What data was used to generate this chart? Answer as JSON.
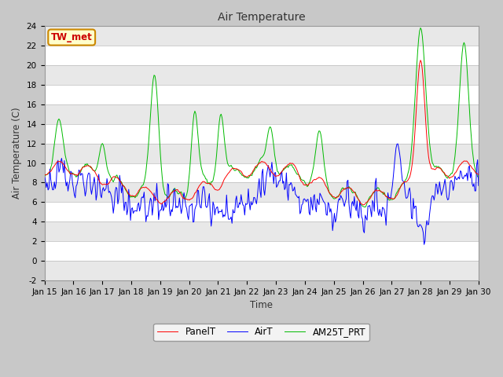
{
  "title": "Air Temperature",
  "ylabel": "Air Temperature (C)",
  "xlabel": "Time",
  "ylim": [
    -2,
    24
  ],
  "yticks": [
    -2,
    0,
    2,
    4,
    6,
    8,
    10,
    12,
    14,
    16,
    18,
    20,
    22,
    24
  ],
  "xtick_labels": [
    "Jan 15",
    "Jan 16",
    "Jan 17",
    "Jan 18",
    "Jan 19",
    "Jan 20",
    "Jan 21",
    "Jan 22",
    "Jan 23",
    "Jan 24",
    "Jan 25",
    "Jan 26",
    "Jan 27",
    "Jan 28",
    "Jan 29",
    "Jan 30"
  ],
  "legend_entries": [
    "PanelT",
    "AirT",
    "AM25T_PRT"
  ],
  "line_colors": [
    "#ff0000",
    "#0000ff",
    "#00bb00"
  ],
  "watermark_text": "TW_met",
  "figure_facecolor": "#c8c8c8",
  "axes_facecolor": "#ffffff",
  "band_even": "#e8e8e8",
  "band_odd": "#ffffff",
  "n_points": 480
}
